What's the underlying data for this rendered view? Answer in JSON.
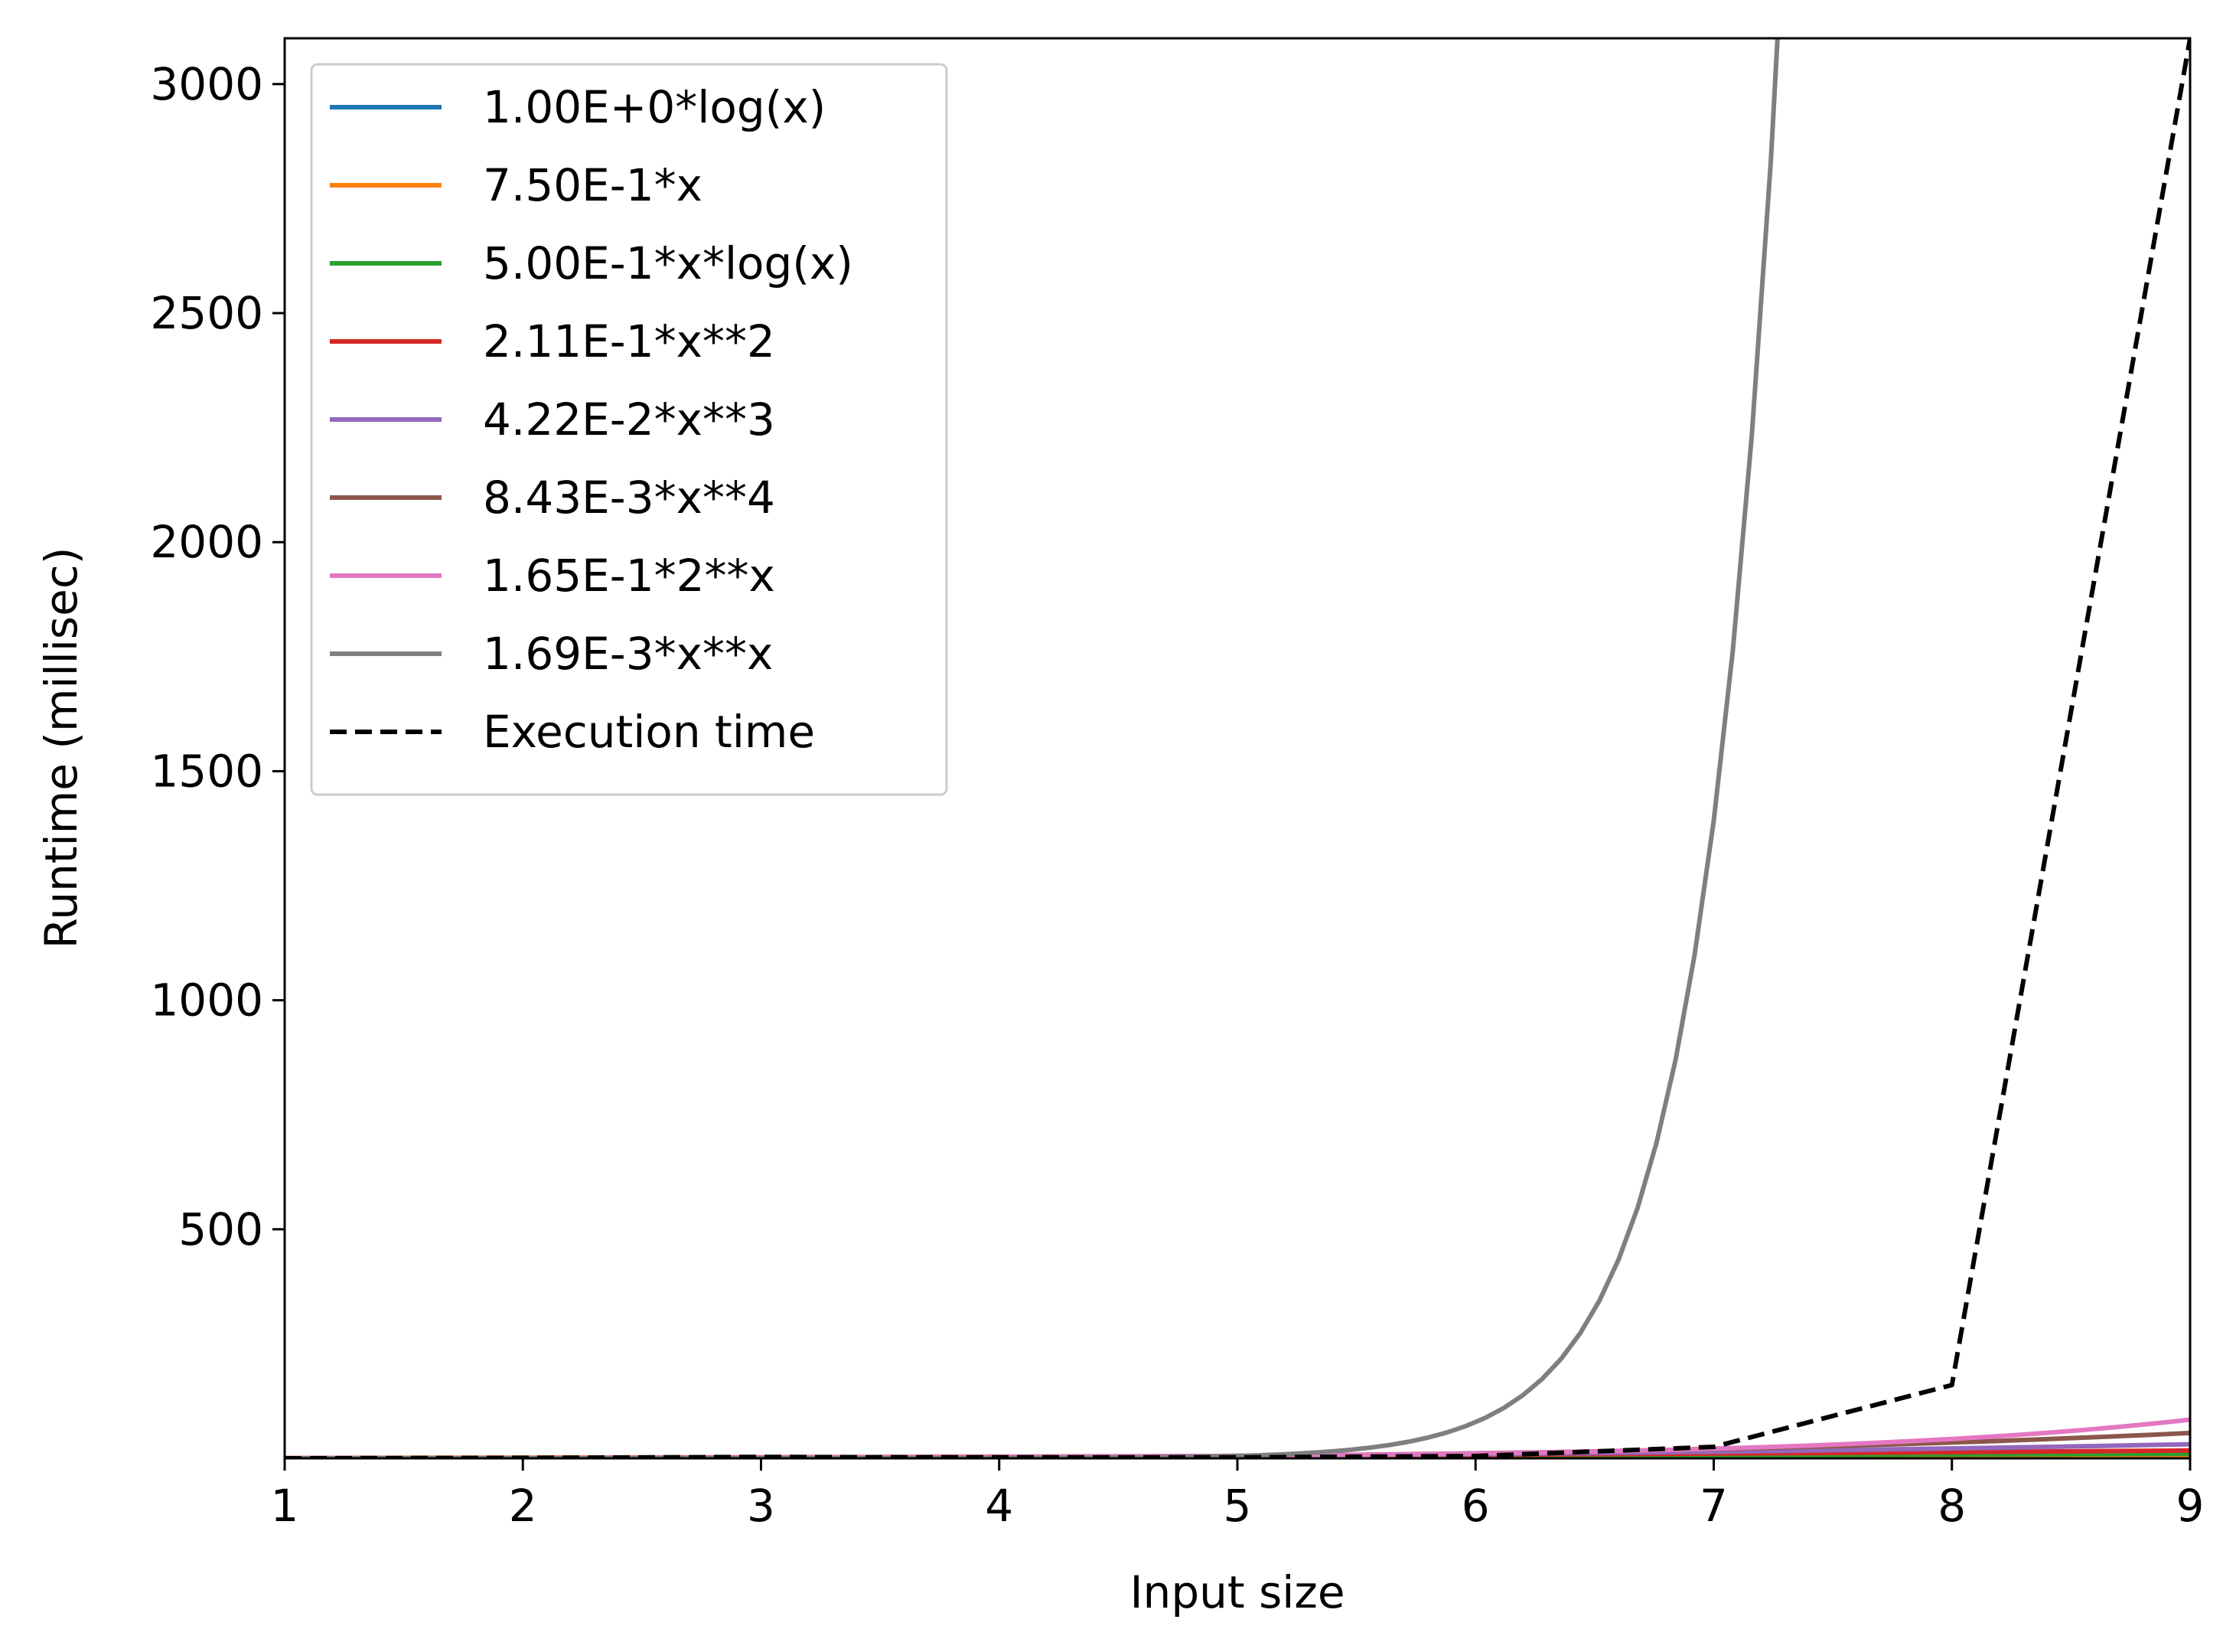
{
  "chart_data": {
    "type": "line",
    "title": "",
    "xlabel": "Input size",
    "ylabel": "Runtime (millisec)",
    "xlim": [
      1,
      9
    ],
    "ylim": [
      0,
      3100
    ],
    "xticks": [
      1,
      2,
      3,
      4,
      5,
      6,
      7,
      8,
      9
    ],
    "yticks": [
      500,
      1000,
      1500,
      2000,
      2500,
      3000
    ],
    "grid": false,
    "legend_position": "upper-left",
    "series": [
      {
        "name": "1.00E+0*log(x)",
        "formula": "log",
        "coef": 1.0,
        "color": "#1f77b4",
        "style": "solid"
      },
      {
        "name": "7.50E-1*x",
        "formula": "x",
        "coef": 0.75,
        "color": "#ff7f0e",
        "style": "solid"
      },
      {
        "name": "5.00E-1*x*log(x)",
        "formula": "xlogx",
        "coef": 0.5,
        "color": "#2ca02c",
        "style": "solid"
      },
      {
        "name": "2.11E-1*x**2",
        "formula": "x2",
        "coef": 0.211,
        "color": "#d62728",
        "style": "solid"
      },
      {
        "name": "4.22E-2*x**3",
        "formula": "x3",
        "coef": 0.0422,
        "color": "#9467bd",
        "style": "solid"
      },
      {
        "name": "8.43E-3*x**4",
        "formula": "x4",
        "coef": 0.00843,
        "color": "#8c564b",
        "style": "solid"
      },
      {
        "name": "1.65E-1*2**x",
        "formula": "2x",
        "coef": 0.165,
        "color": "#e377c2",
        "style": "solid"
      },
      {
        "name": "1.69E-3*x**x",
        "formula": "xx",
        "coef": 0.00169,
        "color": "#7f7f7f",
        "style": "solid"
      },
      {
        "name": "Execution time",
        "color": "#000000",
        "style": "dashed",
        "x": [
          1,
          2,
          3,
          4,
          5,
          6,
          7,
          8,
          9
        ],
        "y": [
          0,
          1,
          3,
          2,
          2,
          5,
          25,
          160,
          3100
        ]
      }
    ]
  }
}
